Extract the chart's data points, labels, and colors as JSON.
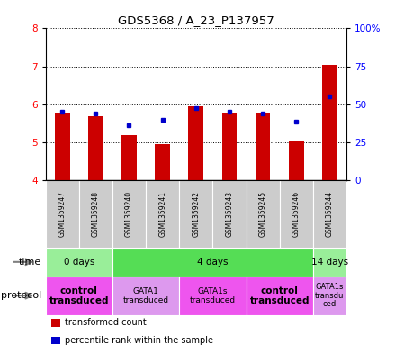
{
  "title": "GDS5368 / A_23_P137957",
  "samples": [
    "GSM1359247",
    "GSM1359248",
    "GSM1359240",
    "GSM1359241",
    "GSM1359242",
    "GSM1359243",
    "GSM1359245",
    "GSM1359246",
    "GSM1359244"
  ],
  "bar_values": [
    5.75,
    5.7,
    5.2,
    4.95,
    5.95,
    5.75,
    5.75,
    5.05,
    7.05
  ],
  "bar_base": 4.0,
  "dot_values": [
    5.8,
    5.75,
    5.45,
    5.6,
    5.9,
    5.8,
    5.75,
    5.55,
    6.2
  ],
  "ylim": [
    4.0,
    8.0
  ],
  "yticks_left": [
    4,
    5,
    6,
    7,
    8
  ],
  "yticks_right_vals": [
    4.0,
    5.0,
    6.0,
    7.0,
    8.0
  ],
  "yticks_right_labels": [
    "0",
    "25",
    "50",
    "75",
    "100%"
  ],
  "bar_color": "#cc0000",
  "dot_color": "#0000cc",
  "time_groups": [
    {
      "label": "0 days",
      "start": 0,
      "end": 2,
      "color": "#99ee99"
    },
    {
      "label": "4 days",
      "start": 2,
      "end": 8,
      "color": "#55dd55"
    },
    {
      "label": "14 days",
      "start": 8,
      "end": 9,
      "color": "#99ee99"
    }
  ],
  "protocol_groups": [
    {
      "label": "control\ntransduced",
      "start": 0,
      "end": 2,
      "color": "#ee55ee",
      "bold": true,
      "fontsize": 7.5
    },
    {
      "label": "GATA1\ntransduced",
      "start": 2,
      "end": 4,
      "color": "#dd99ee",
      "bold": false,
      "fontsize": 6.5
    },
    {
      "label": "GATA1s\ntransduced",
      "start": 4,
      "end": 6,
      "color": "#ee55ee",
      "bold": false,
      "fontsize": 6.5
    },
    {
      "label": "control\ntransduced",
      "start": 6,
      "end": 8,
      "color": "#ee55ee",
      "bold": true,
      "fontsize": 7.5
    },
    {
      "label": "GATA1s\ntransdu\nced",
      "start": 8,
      "end": 9,
      "color": "#dd99ee",
      "bold": false,
      "fontsize": 6.0
    }
  ],
  "sample_box_color": "#cccccc",
  "legend_items": [
    {
      "color": "#cc0000",
      "label": "transformed count"
    },
    {
      "color": "#0000cc",
      "label": "percentile rank within the sample"
    }
  ]
}
